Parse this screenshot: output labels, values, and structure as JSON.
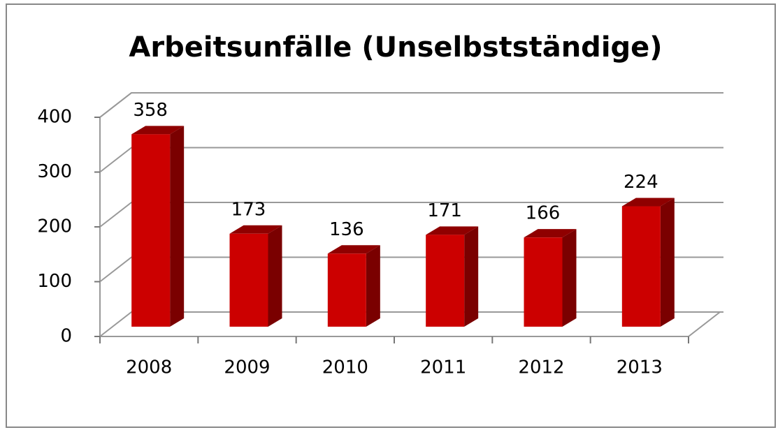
{
  "chart_data": {
    "type": "bar3d",
    "title": "Arbeitsunfälle (Unselbstständige)",
    "categories": [
      "2008",
      "2009",
      "2010",
      "2011",
      "2012",
      "2013"
    ],
    "values": [
      358,
      173,
      136,
      171,
      166,
      224
    ],
    "color": "#cc0000",
    "ylim": [
      0,
      400
    ],
    "yticks": [
      0,
      100,
      200,
      300,
      400
    ],
    "grid": true
  }
}
